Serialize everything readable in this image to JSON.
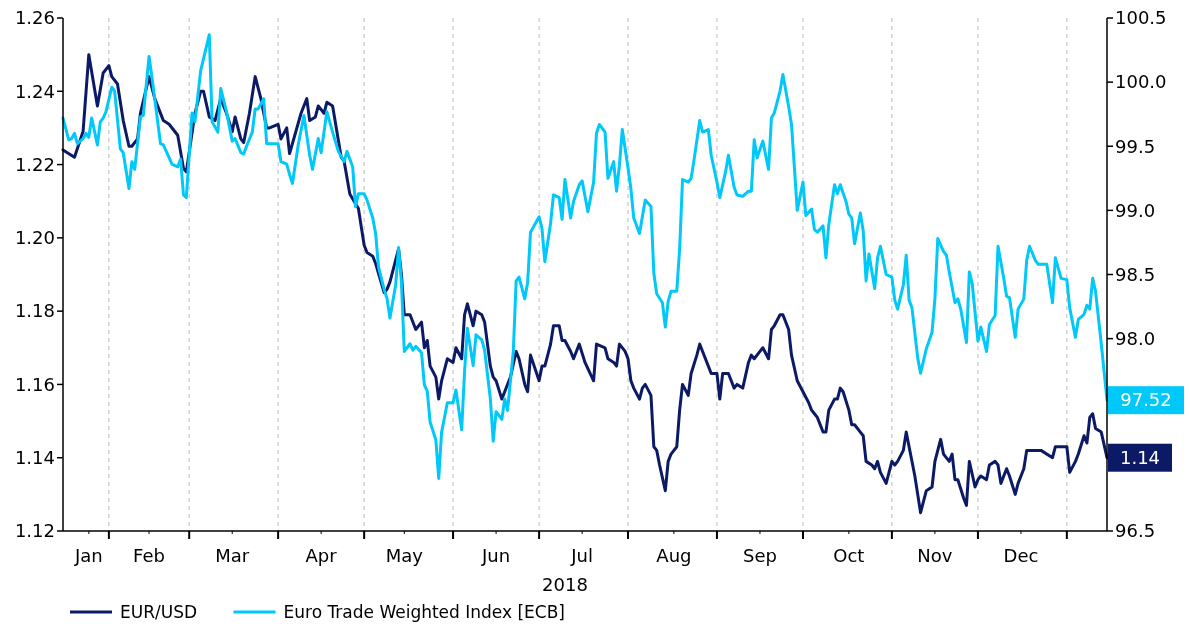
{
  "chart_data": {
    "type": "line",
    "xlabel": "2018",
    "legend": "bottom left",
    "grid": "x",
    "xlim": [
      "2018-01-16",
      "2019-01-15"
    ],
    "xticks": [
      {
        "value": "2018-01-25",
        "label": "Jan"
      },
      {
        "value": "2018-02-01",
        "label": null
      },
      {
        "value": "2018-02-15",
        "label": "Feb"
      },
      {
        "value": "2018-03-01",
        "label": null
      },
      {
        "value": "2018-03-16",
        "label": "Mar"
      },
      {
        "value": "2018-04-01",
        "label": null
      },
      {
        "value": "2018-04-16",
        "label": "Apr"
      },
      {
        "value": "2018-05-01",
        "label": null
      },
      {
        "value": "2018-05-15",
        "label": "May"
      },
      {
        "value": "2018-06-01",
        "label": null
      },
      {
        "value": "2018-06-16",
        "label": "Jun"
      },
      {
        "value": "2018-07-01",
        "label": null
      },
      {
        "value": "2018-07-16",
        "label": "Jul"
      },
      {
        "value": "2018-08-01",
        "label": null
      },
      {
        "value": "2018-08-17",
        "label": "Aug"
      },
      {
        "value": "2018-09-01",
        "label": null
      },
      {
        "value": "2018-09-16",
        "label": "Sep"
      },
      {
        "value": "2018-10-01",
        "label": null
      },
      {
        "value": "2018-10-17",
        "label": "Oct"
      },
      {
        "value": "2018-11-01",
        "label": null
      },
      {
        "value": "2018-11-16",
        "label": "Nov"
      },
      {
        "value": "2018-12-01",
        "label": null
      },
      {
        "value": "2018-12-16",
        "label": "Dec"
      },
      {
        "value": "2019-01-01",
        "label": null
      }
    ],
    "ylim": [
      1.12,
      1.26
    ],
    "yticks": [
      1.12,
      1.14,
      1.16,
      1.18,
      {
        "value": 1.2,
        "label": "1.20"
      },
      1.22,
      1.24,
      1.26
    ],
    "y2lim": [
      96.5,
      100.5
    ],
    "y2ticks": [
      96.5,
      {
        "value": 98,
        "label": "98.0"
      },
      98.5,
      {
        "value": 99,
        "label": "99.0"
      },
      99.5,
      {
        "value": 100,
        "label": "100.0"
      },
      100.5
    ],
    "annotations": [
      "1.14",
      "97.52"
    ],
    "series": [
      {
        "name": "EUR/USD",
        "color": "#0c1a66",
        "axis": "y",
        "x": [
          "2018-01-16",
          "2018-01-20",
          "2018-01-23",
          "2018-01-25",
          "2018-01-28",
          "2018-01-30",
          "2018-02-01",
          "2018-02-02",
          "2018-02-04",
          "2018-02-06",
          "2018-02-08",
          "2018-02-09",
          "2018-02-11",
          "2018-02-12",
          "2018-02-15",
          "2018-02-17",
          "2018-02-20",
          "2018-02-22",
          "2018-02-25",
          "2018-02-27",
          "2018-02-28",
          "2018-03-03",
          "2018-03-05",
          "2018-03-06",
          "2018-03-08",
          "2018-03-10",
          "2018-03-12",
          "2018-03-14",
          "2018-03-16",
          "2018-03-17",
          "2018-03-19",
          "2018-03-20",
          "2018-03-22",
          "2018-03-24",
          "2018-03-26",
          "2018-03-28",
          "2018-03-29",
          "2018-04-01",
          "2018-04-02",
          "2018-04-04",
          "2018-04-05",
          "2018-04-09",
          "2018-04-11",
          "2018-04-12",
          "2018-04-14",
          "2018-04-15",
          "2018-04-17",
          "2018-04-18",
          "2018-04-20",
          "2018-04-23",
          "2018-04-24",
          "2018-04-26",
          "2018-04-29",
          "2018-05-01",
          "2018-05-02",
          "2018-05-04",
          "2018-05-05",
          "2018-05-08",
          "2018-05-09",
          "2018-05-10",
          "2018-05-12",
          "2018-05-13",
          "2018-05-14",
          "2018-05-15",
          "2018-05-17",
          "2018-05-19",
          "2018-05-21",
          "2018-05-22",
          "2018-05-23",
          "2018-05-24",
          "2018-05-26",
          "2018-05-27",
          "2018-05-28",
          "2018-05-30",
          "2018-06-01",
          "2018-06-02",
          "2018-06-04",
          "2018-06-05",
          "2018-06-06",
          "2018-06-08",
          "2018-06-09",
          "2018-06-11",
          "2018-06-12",
          "2018-06-14",
          "2018-06-15",
          "2018-06-16",
          "2018-06-18",
          "2018-06-19",
          "2018-06-21",
          "2018-06-23",
          "2018-06-24",
          "2018-06-26",
          "2018-06-27",
          "2018-06-28",
          "2018-07-01",
          "2018-07-02",
          "2018-07-03",
          "2018-07-05",
          "2018-07-06",
          "2018-07-08",
          "2018-07-09",
          "2018-07-10",
          "2018-07-12",
          "2018-07-13",
          "2018-07-15",
          "2018-07-17",
          "2018-07-20",
          "2018-07-21",
          "2018-07-24",
          "2018-07-25",
          "2018-07-27",
          "2018-07-28",
          "2018-07-29",
          "2018-07-31",
          "2018-08-01",
          "2018-08-02",
          "2018-08-03",
          "2018-08-05",
          "2018-08-06",
          "2018-08-07",
          "2018-08-09",
          "2018-08-10",
          "2018-08-11",
          "2018-08-12",
          "2018-08-14",
          "2018-08-15",
          "2018-08-16",
          "2018-08-18",
          "2018-08-19",
          "2018-08-20",
          "2018-08-22",
          "2018-08-23",
          "2018-08-25",
          "2018-08-26",
          "2018-08-27",
          "2018-08-29",
          "2018-08-30",
          "2018-09-01",
          "2018-09-02",
          "2018-09-03",
          "2018-09-05",
          "2018-09-07",
          "2018-09-08",
          "2018-09-10",
          "2018-09-12",
          "2018-09-13",
          "2018-09-14",
          "2018-09-16",
          "2018-09-17",
          "2018-09-19",
          "2018-09-20",
          "2018-09-21",
          "2018-09-23",
          "2018-09-24",
          "2018-09-26",
          "2018-09-27",
          "2018-09-29",
          "2018-10-01",
          "2018-10-03",
          "2018-10-04",
          "2018-10-05",
          "2018-10-06",
          "2018-10-08",
          "2018-10-09",
          "2018-10-10",
          "2018-10-12",
          "2018-10-13",
          "2018-10-14",
          "2018-10-15",
          "2018-10-17",
          "2018-10-18",
          "2018-10-19",
          "2018-10-21",
          "2018-10-22",
          "2018-10-23",
          "2018-10-25",
          "2018-10-26",
          "2018-10-27",
          "2018-10-28",
          "2018-10-30",
          "2018-11-01",
          "2018-11-02",
          "2018-11-03",
          "2018-11-05",
          "2018-11-06",
          "2018-11-07",
          "2018-11-09",
          "2018-11-11",
          "2018-11-12",
          "2018-11-13",
          "2018-11-15",
          "2018-11-16",
          "2018-11-18",
          "2018-11-19",
          "2018-11-21",
          "2018-11-22",
          "2018-11-23",
          "2018-11-24",
          "2018-11-26",
          "2018-11-27",
          "2018-11-28",
          "2018-11-30",
          "2018-12-01",
          "2018-12-02",
          "2018-12-04",
          "2018-12-05",
          "2018-12-07",
          "2018-12-08",
          "2018-12-09",
          "2018-12-11",
          "2018-12-12",
          "2018-12-14",
          "2018-12-15",
          "2018-12-17",
          "2018-12-18",
          "2018-12-20",
          "2018-12-23",
          "2018-12-27",
          "2018-12-28",
          "2019-01-01",
          "2019-01-02",
          "2019-01-04",
          "2019-01-05",
          "2019-01-07",
          "2019-01-08",
          "2019-01-09",
          "2019-01-10",
          "2019-01-11",
          "2019-01-13",
          "2019-01-15"
        ],
        "values": [
          1.224,
          1.222,
          1.229,
          1.25,
          1.236,
          1.245,
          1.247,
          1.244,
          1.242,
          1.232,
          1.225,
          1.225,
          1.227,
          1.234,
          1.244,
          1.238,
          1.232,
          1.231,
          1.228,
          1.219,
          1.218,
          1.234,
          1.24,
          1.24,
          1.233,
          1.232,
          1.238,
          1.234,
          1.229,
          1.233,
          1.227,
          1.226,
          1.234,
          1.244,
          1.238,
          1.23,
          1.23,
          1.231,
          1.227,
          1.23,
          1.223,
          1.234,
          1.238,
          1.232,
          1.233,
          1.236,
          1.234,
          1.237,
          1.236,
          1.222,
          1.221,
          1.212,
          1.208,
          1.198,
          1.196,
          1.195,
          1.193,
          1.185,
          1.186,
          1.188,
          1.194,
          1.197,
          1.19,
          1.179,
          1.179,
          1.175,
          1.177,
          1.17,
          1.172,
          1.165,
          1.162,
          1.156,
          1.161,
          1.167,
          1.166,
          1.17,
          1.167,
          1.179,
          1.182,
          1.176,
          1.18,
          1.179,
          1.177,
          1.165,
          1.162,
          1.161,
          1.156,
          1.158,
          1.162,
          1.169,
          1.167,
          1.16,
          1.158,
          1.168,
          1.161,
          1.165,
          1.165,
          1.171,
          1.176,
          1.176,
          1.172,
          1.172,
          1.169,
          1.167,
          1.171,
          1.166,
          1.161,
          1.171,
          1.17,
          1.167,
          1.166,
          1.165,
          1.171,
          1.169,
          1.167,
          1.161,
          1.159,
          1.156,
          1.159,
          1.16,
          1.157,
          1.143,
          1.142,
          1.138,
          1.131,
          1.139,
          1.141,
          1.143,
          1.153,
          1.16,
          1.157,
          1.163,
          1.168,
          1.171,
          1.169,
          1.165,
          1.163,
          1.163,
          1.156,
          1.163,
          1.163,
          1.159,
          1.16,
          1.159,
          1.166,
          1.168,
          1.167,
          1.169,
          1.17,
          1.167,
          1.175,
          1.176,
          1.179,
          1.179,
          1.175,
          1.168,
          1.161,
          1.158,
          1.155,
          1.153,
          1.152,
          1.151,
          1.147,
          1.147,
          1.153,
          1.156,
          1.156,
          1.159,
          1.158,
          1.153,
          1.149,
          1.149,
          1.147,
          1.146,
          1.139,
          1.138,
          1.137,
          1.139,
          1.136,
          1.133,
          1.139,
          1.138,
          1.139,
          1.142,
          1.147,
          1.143,
          1.135,
          1.125,
          1.128,
          1.131,
          1.132,
          1.139,
          1.145,
          1.141,
          1.139,
          1.141,
          1.134,
          1.134,
          1.129,
          1.127,
          1.139,
          1.132,
          1.134,
          1.135,
          1.134,
          1.138,
          1.139,
          1.138,
          1.133,
          1.137,
          1.135,
          1.13,
          1.133,
          1.137,
          1.142,
          1.142,
          1.142,
          1.14,
          1.143,
          1.143,
          1.136,
          1.139,
          1.141,
          1.146,
          1.144,
          1.151,
          1.152,
          1.148,
          1.147,
          1.14
        ]
      },
      {
        "name": "Euro Trade Weighted Index [ECB]",
        "color": "#00c8f8",
        "axis": "y2",
        "x": [
          "2018-01-16",
          "2018-01-18",
          "2018-01-19",
          "2018-01-20",
          "2018-01-21",
          "2018-01-23",
          "2018-01-24",
          "2018-01-25",
          "2018-01-26",
          "2018-01-28",
          "2018-01-29",
          "2018-01-30",
          "2018-01-31",
          "2018-02-02",
          "2018-02-03",
          "2018-02-05",
          "2018-02-06",
          "2018-02-08",
          "2018-02-09",
          "2018-02-10",
          "2018-02-12",
          "2018-02-13",
          "2018-02-15",
          "2018-02-16",
          "2018-02-19",
          "2018-02-20",
          "2018-02-23",
          "2018-02-25",
          "2018-02-26",
          "2018-02-27",
          "2018-02-28",
          "2018-03-02",
          "2018-03-03",
          "2018-03-05",
          "2018-03-08",
          "2018-03-09",
          "2018-03-11",
          "2018-03-12",
          "2018-03-14",
          "2018-03-16",
          "2018-03-17",
          "2018-03-19",
          "2018-03-20",
          "2018-03-21",
          "2018-03-23",
          "2018-03-24",
          "2018-03-25",
          "2018-03-27",
          "2018-03-28",
          "2018-04-01",
          "2018-04-02",
          "2018-04-04",
          "2018-04-05",
          "2018-04-06",
          "2018-04-08",
          "2018-04-10",
          "2018-04-12",
          "2018-04-13",
          "2018-04-15",
          "2018-04-16",
          "2018-04-18",
          "2018-04-20",
          "2018-04-22",
          "2018-04-24",
          "2018-04-25",
          "2018-04-27",
          "2018-04-28",
          "2018-04-29",
          "2018-05-01",
          "2018-05-02",
          "2018-05-04",
          "2018-05-05",
          "2018-05-06",
          "2018-05-08",
          "2018-05-09",
          "2018-05-10",
          "2018-05-12",
          "2018-05-13",
          "2018-05-14",
          "2018-05-15",
          "2018-05-17",
          "2018-05-18",
          "2018-05-19",
          "2018-05-21",
          "2018-05-22",
          "2018-05-23",
          "2018-05-24",
          "2018-05-26",
          "2018-05-27",
          "2018-05-28",
          "2018-05-30",
          "2018-06-01",
          "2018-06-02",
          "2018-06-04",
          "2018-06-05",
          "2018-06-06",
          "2018-06-08",
          "2018-06-09",
          "2018-06-11",
          "2018-06-12",
          "2018-06-14",
          "2018-06-15",
          "2018-06-16",
          "2018-06-18",
          "2018-06-19",
          "2018-06-20",
          "2018-06-22",
          "2018-06-23",
          "2018-06-24",
          "2018-06-26",
          "2018-06-27",
          "2018-06-28",
          "2018-07-01",
          "2018-07-02",
          "2018-07-03",
          "2018-07-05",
          "2018-07-06",
          "2018-07-08",
          "2018-07-09",
          "2018-07-10",
          "2018-07-12",
          "2018-07-13",
          "2018-07-15",
          "2018-07-16",
          "2018-07-18",
          "2018-07-20",
          "2018-07-21",
          "2018-07-22",
          "2018-07-24",
          "2018-07-25",
          "2018-07-27",
          "2018-07-28",
          "2018-07-29",
          "2018-07-30",
          "2018-08-01",
          "2018-08-02",
          "2018-08-03",
          "2018-08-05",
          "2018-08-07",
          "2018-08-09",
          "2018-08-10",
          "2018-08-11",
          "2018-08-13",
          "2018-08-14",
          "2018-08-15",
          "2018-08-16",
          "2018-08-18",
          "2018-08-19",
          "2018-08-20",
          "2018-08-22",
          "2018-08-23",
          "2018-08-24",
          "2018-08-26",
          "2018-08-27",
          "2018-08-29",
          "2018-08-30",
          "2018-09-01",
          "2018-09-02",
          "2018-09-04",
          "2018-09-05",
          "2018-09-07",
          "2018-09-08",
          "2018-09-10",
          "2018-09-12",
          "2018-09-13",
          "2018-09-14",
          "2018-09-15",
          "2018-09-17",
          "2018-09-19",
          "2018-09-20",
          "2018-09-21",
          "2018-09-23",
          "2018-09-24",
          "2018-09-26",
          "2018-09-27",
          "2018-09-29",
          "2018-10-01",
          "2018-10-02",
          "2018-10-04",
          "2018-10-05",
          "2018-10-06",
          "2018-10-08",
          "2018-10-09",
          "2018-10-10",
          "2018-10-12",
          "2018-10-13",
          "2018-10-14",
          "2018-10-16",
          "2018-10-17",
          "2018-10-18",
          "2018-10-19",
          "2018-10-21",
          "2018-10-22",
          "2018-10-23",
          "2018-10-24",
          "2018-10-26",
          "2018-10-27",
          "2018-10-28",
          "2018-10-30",
          "2018-11-01",
          "2018-11-02",
          "2018-11-03",
          "2018-11-05",
          "2018-11-06",
          "2018-11-07",
          "2018-11-08",
          "2018-11-10",
          "2018-11-11",
          "2018-11-13",
          "2018-11-15",
          "2018-11-16",
          "2018-11-17",
          "2018-11-19",
          "2018-11-20",
          "2018-11-21",
          "2018-11-23",
          "2018-11-24",
          "2018-11-25",
          "2018-11-27",
          "2018-11-28",
          "2018-11-29",
          "2018-12-01",
          "2018-12-02",
          "2018-12-04",
          "2018-12-05",
          "2018-12-07",
          "2018-12-08",
          "2018-12-10",
          "2018-12-11",
          "2018-12-12",
          "2018-12-14",
          "2018-12-15",
          "2018-12-17",
          "2018-12-18",
          "2018-12-19",
          "2018-12-21",
          "2018-12-22",
          "2018-12-25",
          "2018-12-27",
          "2018-12-28",
          "2018-12-30",
          "2019-01-01",
          "2019-01-02",
          "2019-01-04",
          "2019-01-05",
          "2019-01-07",
          "2019-01-08",
          "2019-01-09",
          "2019-01-10",
          "2019-01-11",
          "2019-01-13",
          "2019-01-15"
        ],
        "values": [
          99.72,
          99.55,
          99.56,
          99.6,
          99.52,
          99.56,
          99.6,
          99.57,
          99.72,
          99.51,
          99.69,
          99.72,
          99.77,
          99.96,
          99.93,
          99.48,
          99.45,
          99.17,
          99.38,
          99.32,
          99.73,
          99.74,
          100.2,
          100.04,
          99.52,
          99.51,
          99.36,
          99.34,
          99.4,
          99.12,
          99.1,
          99.76,
          99.69,
          100.09,
          100.37,
          99.69,
          99.61,
          99.95,
          99.77,
          99.54,
          99.56,
          99.45,
          99.44,
          99.5,
          99.61,
          99.79,
          99.79,
          99.87,
          99.52,
          99.52,
          99.38,
          99.36,
          99.28,
          99.21,
          99.51,
          99.74,
          99.43,
          99.32,
          99.56,
          99.45,
          99.77,
          99.61,
          99.46,
          99.38,
          99.46,
          99.34,
          99.03,
          99.13,
          99.13,
          99.08,
          98.94,
          98.82,
          98.56,
          98.38,
          98.31,
          98.16,
          98.42,
          98.71,
          98.44,
          97.9,
          97.96,
          97.91,
          97.94,
          97.89,
          97.64,
          97.59,
          97.35,
          97.21,
          96.91,
          97.27,
          97.5,
          97.5,
          97.6,
          97.29,
          97.74,
          98.08,
          97.79,
          98.03,
          97.99,
          97.91,
          97.53,
          97.2,
          97.43,
          97.37,
          97.53,
          97.44,
          97.9,
          98.45,
          98.48,
          98.31,
          98.44,
          98.83,
          98.95,
          98.86,
          98.6,
          98.9,
          99.12,
          99.1,
          98.93,
          99.24,
          98.94,
          99.07,
          99.2,
          99.23,
          98.99,
          99.22,
          99.6,
          99.67,
          99.61,
          99.25,
          99.38,
          99.15,
          99.35,
          99.63,
          99.33,
          99.17,
          98.94,
          98.82,
          99.08,
          99.03,
          98.51,
          98.35,
          98.28,
          98.09,
          98.29,
          98.37,
          98.37,
          98.7,
          99.24,
          99.22,
          99.25,
          99.39,
          99.7,
          99.61,
          99.63,
          99.43,
          99.22,
          99.1,
          99.3,
          99.43,
          99.18,
          99.12,
          99.11,
          99.15,
          99.15,
          99.55,
          99.41,
          99.54,
          99.32,
          99.72,
          99.76,
          99.93,
          100.06,
          99.81,
          99.67,
          99.0,
          99.22,
          98.96,
          99.01,
          98.85,
          98.83,
          98.88,
          98.63,
          98.89,
          99.2,
          99.13,
          99.2,
          99.07,
          98.97,
          98.94,
          98.74,
          98.98,
          98.84,
          98.45,
          98.66,
          98.39,
          98.63,
          98.72,
          98.5,
          98.48,
          98.3,
          98.23,
          98.42,
          98.65,
          98.3,
          98.24,
          97.85,
          97.73,
          97.92,
          98.05,
          98.31,
          98.78,
          98.68,
          98.65,
          98.52,
          98.28,
          98.31,
          98.23,
          97.97,
          98.52,
          98.43,
          97.98,
          98.09,
          97.9,
          98.11,
          98.18,
          98.72,
          98.47,
          98.33,
          98.32,
          98.01,
          98.23,
          98.31,
          98.61,
          98.72,
          98.61,
          98.58,
          98.58,
          98.28,
          98.63,
          98.47,
          98.46,
          98.24,
          98.01,
          98.15,
          98.19,
          98.26,
          98.23,
          98.47,
          98.37,
          97.96,
          97.52
        ]
      }
    ]
  }
}
